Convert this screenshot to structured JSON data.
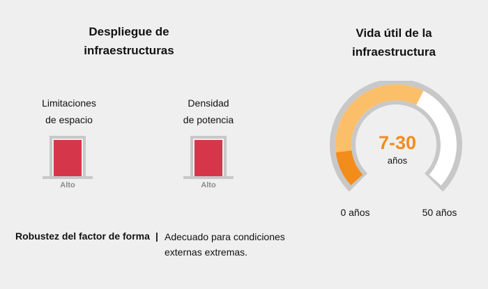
{
  "deployment": {
    "title_line1": "Despliegue de",
    "title_line2": "infraestructuras",
    "items": [
      {
        "label_line1": "Limitaciones",
        "label_line2": "de espacio",
        "level": "Alto"
      },
      {
        "label_line1": "Densidad",
        "label_line2": "de potencia",
        "level": "Alto"
      }
    ]
  },
  "lifespan": {
    "title_line1": "Vida útil de la",
    "title_line2": "infraestructura",
    "value": "7-30",
    "unit": "años",
    "min_label": "0 años",
    "max_label": "50 años",
    "range_min": 0,
    "range_max": 50,
    "highlight_from": 7,
    "highlight_to": 30
  },
  "form_factor": {
    "label": "Robustez del factor de forma",
    "separator": "|",
    "text_line1": "Adecuado para condiciones",
    "text_line2": "externas extremas."
  },
  "colors": {
    "background": "#efefef",
    "level_fill": "#d6364a",
    "gauge_light": "#fbbf6a",
    "gauge_dark": "#f28c1b",
    "gauge_outline": "#c8c8c8"
  }
}
